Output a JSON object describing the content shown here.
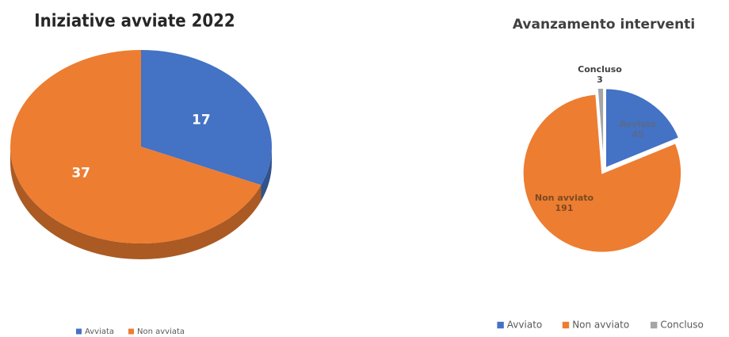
{
  "chart_data": [
    {
      "type": "pie3d",
      "title": "Iniziative avviate 2022",
      "categories": [
        "Avviata",
        "Non avviata"
      ],
      "values": [
        17,
        37
      ],
      "colors": [
        "#4472c4",
        "#ed7d31"
      ],
      "legend": "bottom"
    },
    {
      "type": "pie",
      "title": "Avanzamento interventi",
      "categories": [
        "Avviato",
        "Non avviato",
        "Concluso"
      ],
      "values": [
        45,
        191,
        3
      ],
      "colors": [
        "#4472c4",
        "#ed7d31",
        "#a5a5a5"
      ],
      "legend": "bottom"
    }
  ]
}
